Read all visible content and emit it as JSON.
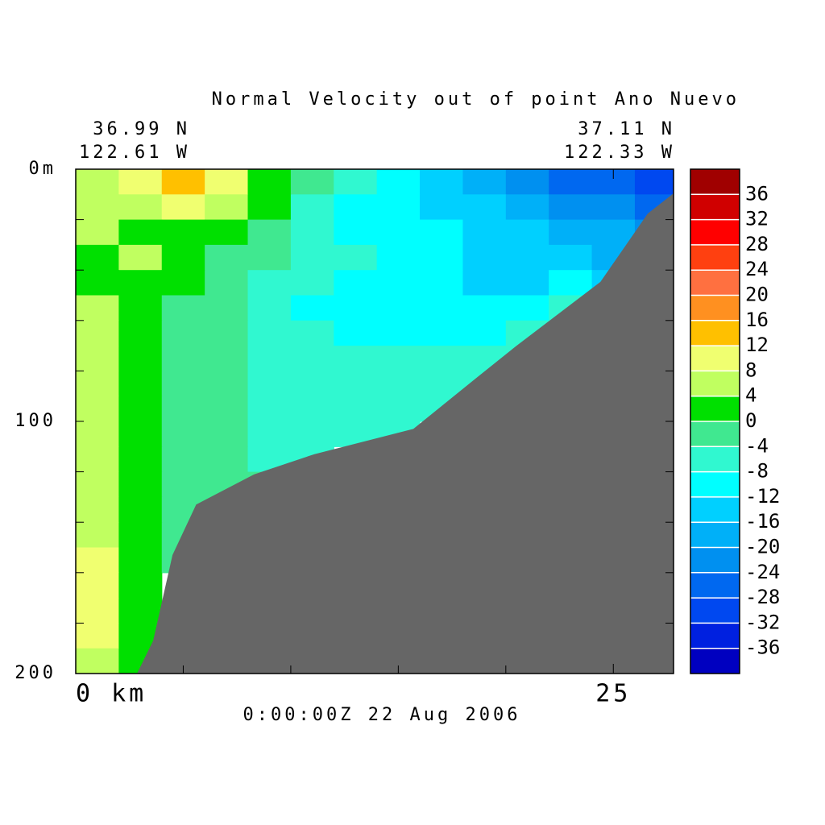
{
  "chart_data": {
    "type": "contour",
    "title": "Normal Velocity out of point Ano Nuevo",
    "subtitle": "0:00:00Z 22 Aug 2006",
    "left_lat": "36.99 N",
    "left_lon": "122.61 W",
    "right_lat": "37.11 N",
    "right_lon": "122.33 W",
    "xlim": [
      0,
      27.8
    ],
    "xticks": [
      {
        "value": 0,
        "label": "0 km"
      },
      25
    ],
    "xminorticks": [
      5,
      10,
      15,
      20
    ],
    "ylim": [
      0,
      200
    ],
    "yticks": [
      {
        "value": 0,
        "label": "0m"
      },
      100,
      200
    ],
    "yminorticks": [
      20,
      40,
      60,
      80,
      120,
      140,
      160,
      180
    ],
    "x": [
      1,
      3,
      5,
      7,
      9,
      11,
      13,
      15,
      17,
      19,
      21,
      23,
      25,
      27
    ],
    "depth": [
      5,
      15,
      25,
      35,
      45,
      55,
      65,
      75,
      85,
      95,
      105,
      115,
      125,
      135,
      145,
      155,
      165,
      175,
      185,
      195
    ],
    "field": [
      [
        6,
        10,
        13,
        8,
        2,
        -4,
        -8,
        -12,
        -14,
        -18,
        -22,
        -26,
        -28,
        -30
      ],
      [
        6,
        6,
        8,
        6,
        0,
        -6,
        -10,
        -12,
        -14,
        -16,
        -18,
        -22,
        -24,
        -26
      ],
      [
        6,
        2,
        2,
        2,
        -2,
        -6,
        -10,
        -12,
        -12,
        -14,
        -16,
        -18,
        -20,
        -22
      ],
      [
        2,
        6,
        2,
        -2,
        -4,
        -6,
        -8,
        -10,
        -12,
        -14,
        -14,
        -16,
        -18,
        -20
      ],
      [
        2,
        2,
        0,
        -2,
        -6,
        -8,
        -10,
        -12,
        -12,
        -14,
        -14,
        -12,
        -14,
        null
      ],
      [
        6,
        2,
        -2,
        -4,
        -6,
        -10,
        -12,
        -12,
        -10,
        -10,
        -10,
        -8,
        null,
        null
      ],
      [
        6,
        2,
        -2,
        -4,
        -6,
        -8,
        -10,
        -10,
        -10,
        -10,
        -8,
        -6,
        null,
        null
      ],
      [
        6,
        2,
        -2,
        -4,
        -6,
        -8,
        -8,
        -8,
        -8,
        -8,
        -6,
        null,
        null,
        null
      ],
      [
        6,
        2,
        -2,
        -4,
        -6,
        -6,
        -8,
        -6,
        -6,
        -6,
        null,
        null,
        null,
        null
      ],
      [
        6,
        2,
        -2,
        -4,
        -6,
        -6,
        -6,
        -6,
        -6,
        null,
        null,
        null,
        null,
        null
      ],
      [
        6,
        2,
        -2,
        -4,
        -6,
        -6,
        -6,
        -6,
        null,
        null,
        null,
        null,
        null,
        null
      ],
      [
        6,
        2,
        -2,
        -4,
        -6,
        -6,
        null,
        null,
        null,
        null,
        null,
        null,
        null,
        null
      ],
      [
        6,
        2,
        -2,
        -4,
        -4,
        null,
        null,
        null,
        null,
        null,
        null,
        null,
        null,
        null
      ],
      [
        6,
        2,
        -2,
        -4,
        null,
        null,
        null,
        null,
        null,
        null,
        null,
        null,
        null,
        null
      ],
      [
        6,
        2,
        -2,
        null,
        null,
        null,
        null,
        null,
        null,
        null,
        null,
        null,
        null,
        null
      ],
      [
        10,
        2,
        -2,
        null,
        null,
        null,
        null,
        null,
        null,
        null,
        null,
        null,
        null,
        null
      ],
      [
        10,
        2,
        null,
        null,
        null,
        null,
        null,
        null,
        null,
        null,
        null,
        null,
        null,
        null
      ],
      [
        10,
        2,
        null,
        null,
        null,
        null,
        null,
        null,
        null,
        null,
        null,
        null,
        null,
        null
      ],
      [
        10,
        2,
        null,
        null,
        null,
        null,
        null,
        null,
        null,
        null,
        null,
        null,
        null,
        null
      ],
      [
        6,
        2,
        null,
        null,
        null,
        null,
        null,
        null,
        null,
        null,
        null,
        null,
        null,
        null
      ]
    ],
    "bottom": {
      "x": [
        27.8,
        26.6,
        24.4,
        20.5,
        18.6,
        15.7,
        11.1,
        8.3,
        5.6,
        4.5,
        3.6,
        2.85
      ],
      "depth": [
        9.6,
        17.6,
        44.7,
        70,
        83,
        103,
        113,
        121,
        133,
        153,
        187,
        200
      ],
      "color": "#666666"
    },
    "levels": [
      -40,
      -36,
      -32,
      -28,
      -24,
      -20,
      -16,
      -12,
      -8,
      -4,
      0,
      4,
      8,
      12,
      16,
      20,
      24,
      28,
      32,
      36,
      40
    ],
    "colors": [
      "#0000c0",
      "#0020e0",
      "#0048f0",
      "#0068f0",
      "#0090f0",
      "#00b0f8",
      "#00d0ff",
      "#00ffff",
      "#30f8d0",
      "#40e890",
      "#00e000",
      "#c0ff60",
      "#f0ff70",
      "#ffc000",
      "#ff9020",
      "#ff7040",
      "#ff4010",
      "#ff0000",
      "#d00000",
      "#a00000"
    ],
    "colorbar_ticks": [
      -36,
      -32,
      -28,
      -24,
      -20,
      -16,
      -12,
      -8,
      -4,
      0,
      4,
      8,
      12,
      16,
      20,
      24,
      28,
      32,
      36
    ]
  }
}
